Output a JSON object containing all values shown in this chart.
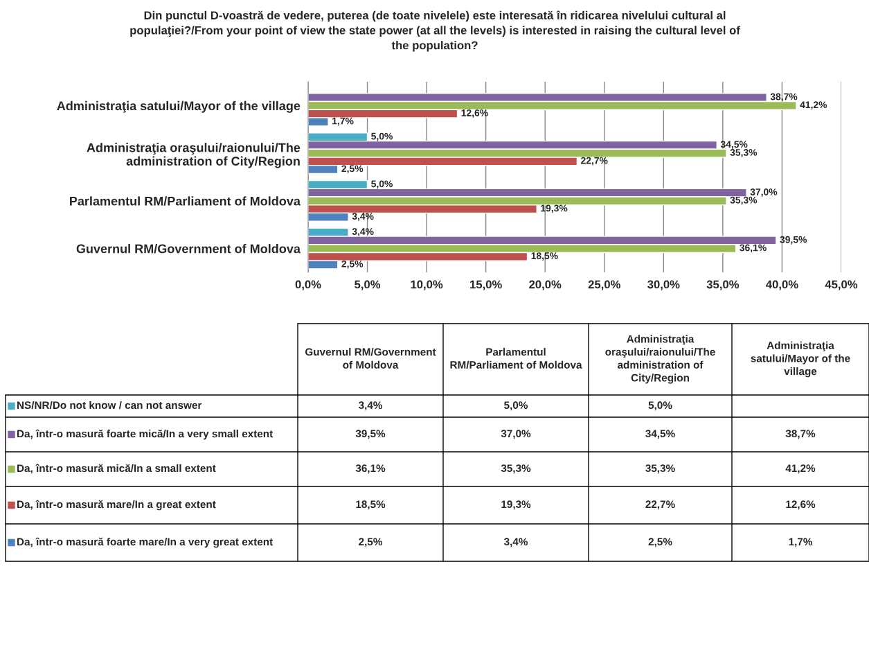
{
  "chart_data": {
    "type": "bar",
    "orientation": "horizontal",
    "title": "Din punctul D-voastră de vedere, puterea (de toate nivelele) este interesată în ridicarea nivelului cultural al populaţiei?/From your point of view the state power (at all the levels) is interested in raising the cultural level of the population?",
    "categories": [
      "Administraţia satului/Mayor of the village",
      "Administraţia oraşului/raionului/The administration of City/Region",
      "Parlamentul RM/Parliament of Moldova",
      "Guvernul RM/Government of Moldova"
    ],
    "series": [
      {
        "name": "NS/NR/Do not know / can not answer",
        "color": "#4bacc6",
        "values": [
          null,
          5.0,
          5.0,
          3.4
        ],
        "value_labels": [
          null,
          "5,0%",
          "5,0%",
          "3,4%"
        ]
      },
      {
        "name": "Da, într-o masură foarte mică/In a very small extent",
        "color": "#8064a2",
        "values": [
          38.7,
          34.5,
          37.0,
          39.5
        ],
        "value_labels": [
          "38,7%",
          "34,5%",
          "37,0%",
          "39,5%"
        ]
      },
      {
        "name": "Da, într-o masură mică/In a small extent",
        "color": "#9bbb59",
        "values": [
          41.2,
          35.3,
          35.3,
          36.1
        ],
        "value_labels": [
          "41,2%",
          "35,3%",
          "35,3%",
          "36,1%"
        ]
      },
      {
        "name": "Da, într-o masură mare/In a great extent",
        "color": "#c0504d",
        "values": [
          12.6,
          22.7,
          19.3,
          18.5
        ],
        "value_labels": [
          "12,6%",
          "22,7%",
          "19,3%",
          "18,5%"
        ]
      },
      {
        "name": "Da, într-o masură foarte mare/In a very great extent",
        "color": "#4f81bd",
        "values": [
          1.7,
          2.5,
          3.4,
          2.5
        ],
        "value_labels": [
          "1,7%",
          "2,5%",
          "3,4%",
          "2,5%"
        ]
      }
    ],
    "xlim": [
      0,
      45
    ],
    "xticks": [
      {
        "value": 0,
        "label": "0,0%"
      },
      {
        "value": 5,
        "label": "5,0%"
      },
      {
        "value": 10,
        "label": "10,0%"
      },
      {
        "value": 15,
        "label": "15,0%"
      },
      {
        "value": 20,
        "label": "20,0%"
      },
      {
        "value": 25,
        "label": "25,0%"
      },
      {
        "value": 30,
        "label": "30,0%"
      },
      {
        "value": 35,
        "label": "35,0%"
      },
      {
        "value": 40,
        "label": "40,0%"
      },
      {
        "value": 45,
        "label": "45,0%"
      }
    ],
    "grid": "x",
    "legend": "bottom"
  }
}
